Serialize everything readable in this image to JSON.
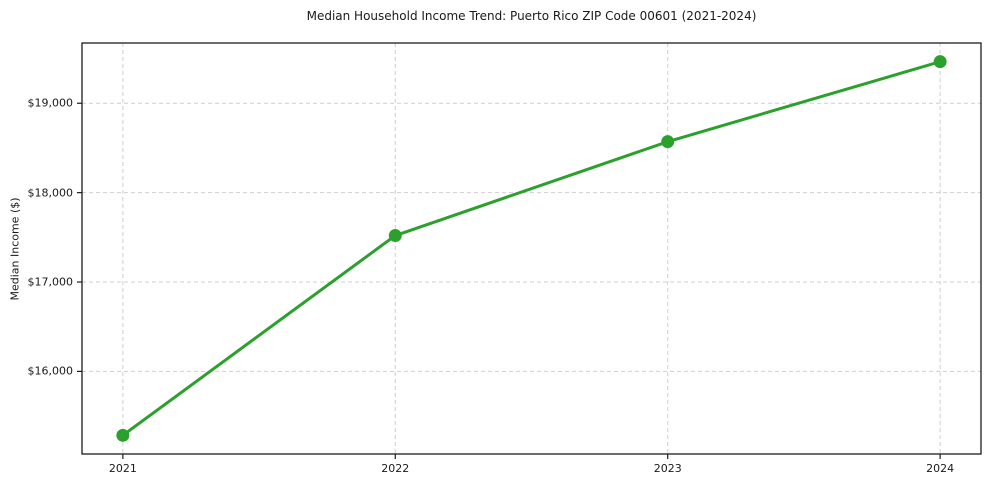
{
  "chart_data": {
    "type": "line",
    "title": "Median Household Income Trend: Puerto Rico ZIP Code 00601 (2021-2024)",
    "xlabel": "",
    "ylabel": "Median Income ($)",
    "x": [
      2021,
      2022,
      2023,
      2024
    ],
    "values": [
      15285,
      17520,
      18570,
      19465
    ],
    "x_ticks": [
      2021,
      2022,
      2023,
      2024
    ],
    "x_tick_labels": [
      "2021",
      "2022",
      "2023",
      "2024"
    ],
    "y_ticks": [
      16000,
      17000,
      18000,
      19000
    ],
    "y_tick_labels": [
      "$16,000",
      "$17,000",
      "$18,000",
      "$19,000"
    ],
    "xlim": [
      2020.85,
      2024.15
    ],
    "ylim": [
      15076,
      19674
    ],
    "grid": true,
    "grid_style": "dashed",
    "legend": "none",
    "line_color": "#2ca02c",
    "marker": "circle",
    "grid_color": "#cfcfcf",
    "spine_color": "#1c1c1c",
    "text_color": "#1a1a1a",
    "background_color": "#ffffff"
  }
}
